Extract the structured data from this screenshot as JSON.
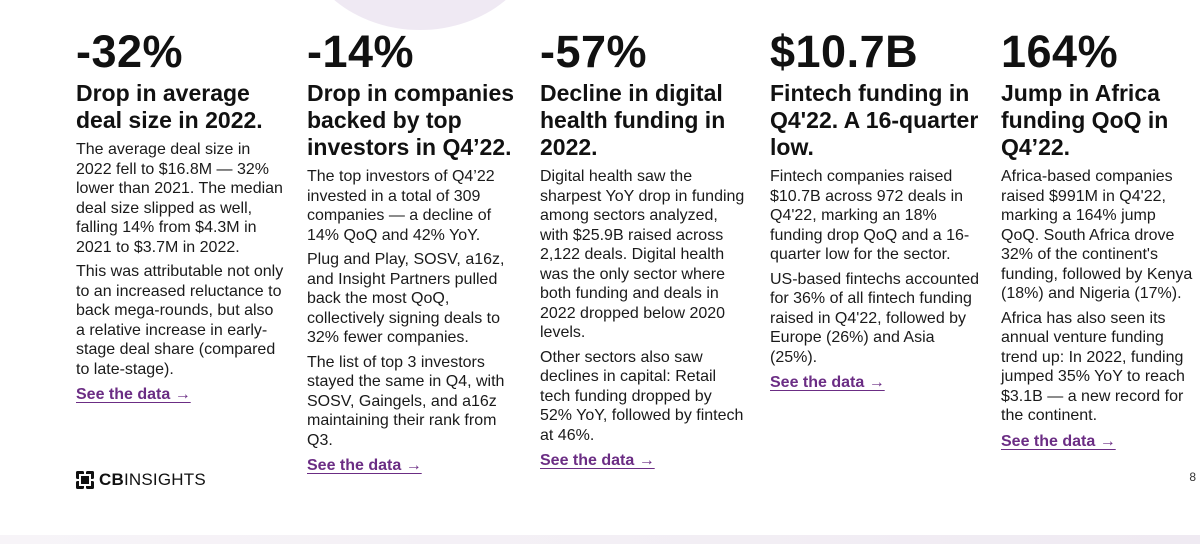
{
  "columns": [
    {
      "stat": "-32%",
      "headline": "Drop in average deal size in 2022.",
      "paragraphs": [
        "The average deal size in 2022 fell to $16.8M — 32% lower than 2021. The median deal size slipped as well, falling 14% from $4.3M in 2021 to $3.7M in 2022.",
        "This was attributable not only to an increased reluctance to back mega-rounds, but also a relative increase in early-stage deal share (compared to late-stage)."
      ],
      "link": "See the data →"
    },
    {
      "stat": "-14%",
      "headline": "Drop in companies backed by top investors in Q4’22.",
      "paragraphs": [
        "The top investors of Q4’22 invested in a total of 309 companies — a decline of 14% QoQ and 42% YoY.",
        "Plug and Play, SOSV, a16z, and Insight Partners pulled back the most QoQ, collectively signing deals to 32% fewer companies.",
        "The list of top 3 investors stayed the same in Q4, with SOSV, Gaingels, and a16z maintaining their rank from Q3."
      ],
      "link": "See the data →"
    },
    {
      "stat": "-57%",
      "headline": "Decline in digital health funding in 2022.",
      "paragraphs": [
        "Digital health saw the sharpest YoY drop in funding among sectors analyzed, with $25.9B raised across 2,122 deals. Digital health was the only sector where both funding and deals in 2022 dropped below 2020 levels.",
        "Other sectors also saw declines in capital: Retail tech funding dropped by 52% YoY, followed by fintech at 46%."
      ],
      "link": "See the data →"
    },
    {
      "stat": "$10.7B",
      "headline": "Fintech funding in Q4'22. A 16-quarter low.",
      "paragraphs": [
        "Fintech companies raised $10.7B across 972 deals in Q4'22, marking an 18% funding drop QoQ and a 16-quarter low for the sector.",
        "US-based fintechs accounted for 36% of all fintech funding raised in Q4'22, followed by Europe (26%) and Asia (25%)."
      ],
      "link": "See the data →"
    },
    {
      "stat": "164%",
      "headline": "Jump in Africa funding QoQ in Q4’22.",
      "paragraphs": [
        "Africa-based companies raised $991M in Q4'22, marking a 164% jump QoQ. South Africa drove 32% of the continent's funding, followed by Kenya (18%) and Nigeria (17%).",
        "Africa has also seen its annual venture funding trend up: In 2022, funding jumped 35% YoY to reach $3.1B — a new record for the continent."
      ],
      "link": "See the data →"
    }
  ],
  "logo": {
    "bold": "CB",
    "rest": "INSIGHTS"
  },
  "page_number": "8",
  "colors": {
    "link": "#6b2d84",
    "accent_blob": "#efe9f3"
  }
}
